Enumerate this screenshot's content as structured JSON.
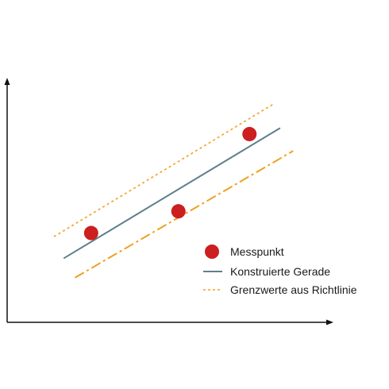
{
  "colors": {
    "axis": "#111111",
    "point": "#cc1f1f",
    "fit_line": "#5f7f8c",
    "limit_line": "#f0a020",
    "text": "#1a1a1a"
  },
  "legend": {
    "point_label": "Messpunkt",
    "fit_label": "Konstruierte Gerade",
    "limit_label": "Grenzwerte aus Richtlinie"
  },
  "chart_data": {
    "type": "line",
    "x_range": [
      0,
      10
    ],
    "y_range": [
      0,
      10
    ],
    "grid": false,
    "legend_position": "bottom-right",
    "points": [
      {
        "x": 2.6,
        "y": 3.7
      },
      {
        "x": 5.3,
        "y": 4.6
      },
      {
        "x": 7.5,
        "y": 7.8
      }
    ],
    "series": [
      {
        "role": "fit",
        "style": "solid",
        "x": [
          1.75,
          8.45
        ],
        "y": [
          2.65,
          8.05
        ]
      },
      {
        "role": "upper-limit",
        "style": "dashed",
        "x": [
          1.45,
          8.25
        ],
        "y": [
          3.55,
          9.05
        ]
      },
      {
        "role": "lower-limit",
        "style": "dash-dot",
        "x": [
          2.1,
          8.85
        ],
        "y": [
          1.85,
          7.1
        ]
      }
    ]
  }
}
